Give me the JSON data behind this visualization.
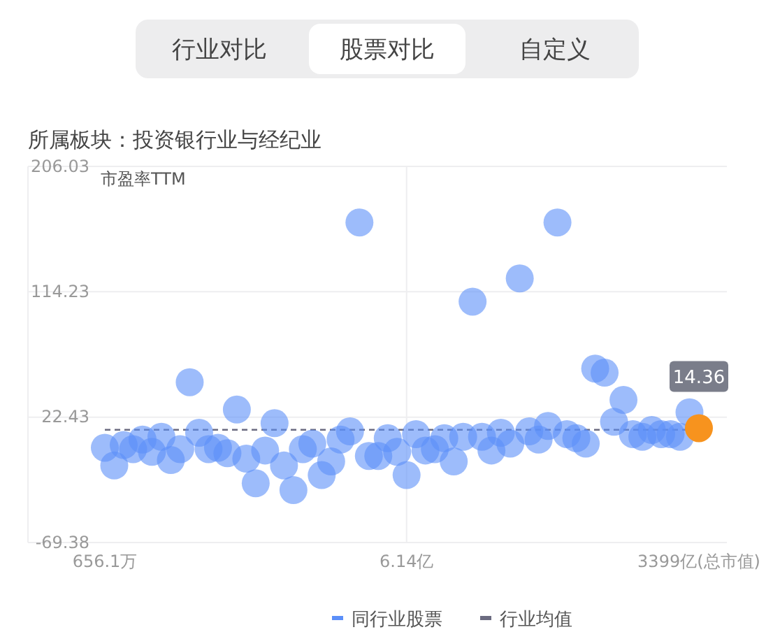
{
  "chart_data": {
    "type": "scatter",
    "title": "所属板块：投资银行业与经纪业",
    "ylabel": "市盈率TTM",
    "annotations": [
      "行业对比",
      "股票对比",
      "自定义"
    ],
    "categories": [
      "656.1万",
      null,
      null,
      null,
      null,
      null,
      null,
      null,
      null,
      null,
      null,
      null,
      null,
      null,
      null,
      null,
      null,
      null,
      null,
      null,
      null,
      null,
      null,
      null,
      null,
      null,
      null,
      null,
      null,
      null,
      null,
      null,
      "6.14亿",
      null,
      null,
      null,
      null,
      null,
      null,
      null,
      null,
      null,
      null,
      null,
      null,
      null,
      null,
      null,
      null,
      null,
      null,
      null,
      null,
      null,
      null,
      null,
      null,
      null,
      null,
      null,
      null,
      null,
      null,
      "3399亿(总市值)"
    ],
    "series": [
      {
        "name": "同行业股票",
        "color": "#5b8ff9",
        "values": [
          0,
          -13,
          2,
          -1,
          6,
          -3,
          8,
          -9,
          -1,
          48,
          11,
          -1,
          0,
          -4,
          28,
          -8,
          -26,
          -2,
          18,
          -13,
          -31,
          -1,
          3,
          -20,
          -10,
          6,
          12,
          165,
          -6,
          -6,
          7,
          -3,
          -20,
          10,
          -2,
          -1,
          7,
          -10,
          8,
          107,
          8,
          -2,
          11,
          3,
          124,
          12,
          6,
          16,
          165,
          10,
          7,
          3,
          58,
          55,
          19,
          35,
          10,
          8,
          13,
          10,
          10,
          8,
          26,
          null
        ]
      },
      {
        "color": "#f7931e",
        "values": [
          null,
          null,
          null,
          null,
          null,
          null,
          null,
          null,
          null,
          null,
          null,
          null,
          null,
          null,
          null,
          null,
          null,
          null,
          null,
          null,
          null,
          null,
          null,
          null,
          null,
          null,
          null,
          null,
          null,
          null,
          null,
          null,
          null,
          null,
          null,
          null,
          null,
          null,
          null,
          null,
          null,
          null,
          null,
          null,
          null,
          null,
          null,
          null,
          null,
          null,
          null,
          null,
          null,
          null,
          null,
          null,
          null,
          null,
          null,
          null,
          null,
          null,
          null,
          14.36
        ],
        "value_labels": [
          null,
          null,
          null,
          null,
          null,
          null,
          null,
          null,
          null,
          null,
          null,
          null,
          null,
          null,
          null,
          null,
          null,
          null,
          null,
          null,
          null,
          null,
          null,
          null,
          null,
          null,
          null,
          null,
          null,
          null,
          null,
          null,
          null,
          null,
          null,
          null,
          null,
          null,
          null,
          null,
          null,
          null,
          null,
          null,
          null,
          null,
          null,
          null,
          null,
          null,
          null,
          null,
          null,
          null,
          null,
          null,
          null,
          null,
          null,
          null,
          null,
          null,
          null,
          "14.36"
        ]
      }
    ],
    "ylim": [
      -69.38,
      206.03
    ],
    "yticks": [
      -69.38,
      22.43,
      114.23,
      206.03
    ],
    "ref_lines": [
      {
        "axis": "y",
        "value": 13.2,
        "label": "行业均值",
        "color": "#6b6b80",
        "line_style": "dashed"
      }
    ],
    "grid": true,
    "marker": "circle",
    "legend": "bottom"
  }
}
